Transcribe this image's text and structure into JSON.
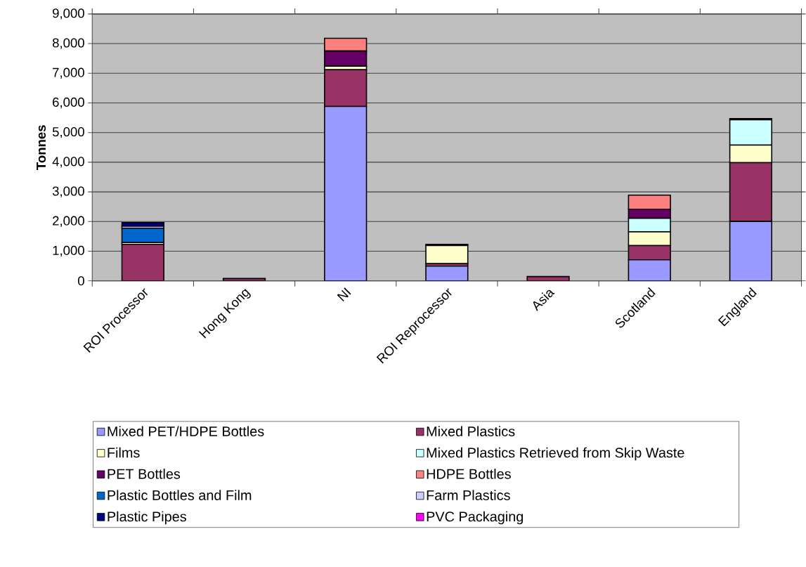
{
  "chart_data": {
    "type": "bar",
    "stacked": true,
    "ylabel": "Tonnes",
    "categories": [
      "ROI Processor",
      "Hong Kong",
      "NI",
      "ROI Reprocessor",
      "Asia",
      "Scotland",
      "England"
    ],
    "series": [
      {
        "name": "Mixed PET/HDPE Bottles",
        "color": "#9999ff",
        "values": [
          0,
          0,
          5880,
          495,
          0,
          710,
          2005
        ]
      },
      {
        "name": "Mixed Plastics",
        "color": "#993366",
        "values": [
          1230,
          80,
          1240,
          85,
          145,
          480,
          1980
        ]
      },
      {
        "name": "Films",
        "color": "#ffffcc",
        "values": [
          60,
          0,
          120,
          610,
          0,
          460,
          595
        ]
      },
      {
        "name": "Mixed Plastics Retrieved from Skip Waste",
        "color": "#ccffff",
        "values": [
          0,
          0,
          0,
          0,
          0,
          460,
          850
        ]
      },
      {
        "name": "PET Bottles",
        "color": "#660066",
        "values": [
          0,
          0,
          510,
          40,
          0,
          305,
          0
        ]
      },
      {
        "name": "HDPE Bottles",
        "color": "#ff8080",
        "values": [
          0,
          0,
          430,
          0,
          0,
          475,
          0
        ]
      },
      {
        "name": "Plastic Bottles and Film",
        "color": "#0066cc",
        "values": [
          485,
          0,
          0,
          0,
          0,
          0,
          0
        ]
      },
      {
        "name": "Farm Plastics",
        "color": "#ccccff",
        "values": [
          65,
          0,
          0,
          0,
          0,
          0,
          0
        ]
      },
      {
        "name": "Plastic Pipes",
        "color": "#000080",
        "values": [
          125,
          0,
          0,
          0,
          0,
          0,
          40
        ]
      },
      {
        "name": "PVC Packaging",
        "color": "#ff00ff",
        "values": [
          0,
          0,
          0,
          0,
          0,
          0,
          0
        ]
      }
    ],
    "ylim": [
      0,
      9000
    ],
    "yticks": [
      0,
      {
        "value": 1000,
        "label": "1,000"
      },
      {
        "value": 2000,
        "label": "2,000"
      },
      {
        "value": 3000,
        "label": "3,000"
      },
      {
        "value": 4000,
        "label": "4,000"
      },
      {
        "value": 5000,
        "label": "5,000"
      },
      {
        "value": 6000,
        "label": "6,000"
      },
      {
        "value": 7000,
        "label": "7,000"
      },
      {
        "value": 8000,
        "label": "8,000"
      },
      {
        "value": 9000,
        "label": "9,000"
      }
    ],
    "grid": "y",
    "legend": "bottom"
  }
}
